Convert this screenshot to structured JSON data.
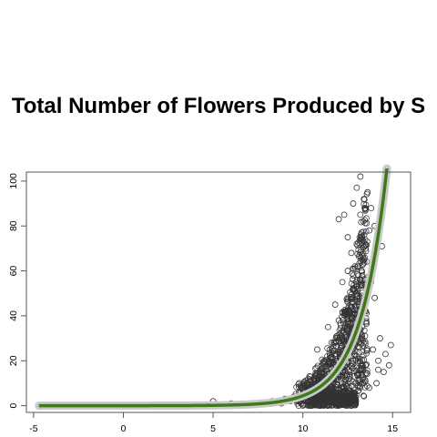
{
  "chart_data": {
    "type": "scatter",
    "title": "Total Number of Flowers Produced by S",
    "xlabel": "",
    "ylabel": "",
    "xlim": [
      -5.4,
      16
    ],
    "ylim": [
      -3,
      104
    ],
    "x_ticks": [
      -5,
      0,
      5,
      10,
      15
    ],
    "y_ticks": [
      0,
      20,
      40,
      60,
      80,
      100
    ],
    "x_tick_labels": [
      "-5",
      "0",
      "5",
      "10",
      "15"
    ],
    "y_tick_labels": [
      "0",
      "20",
      "40",
      "60",
      "80",
      "100"
    ],
    "grid": false,
    "legend": "none",
    "marker": "open-circle",
    "point_color": "#333333",
    "curve": {
      "name": "",
      "color": "#3f7a1a",
      "band_color": "#c8c8c8",
      "form": "exponential",
      "x_start": -4.7,
      "x_end": 15,
      "x_at_y_1": 9.0,
      "x_at_y_40": 13.25,
      "x_at_y_100": 14.6
    },
    "points": [
      [
        5.0,
        2
      ],
      [
        6.0,
        1
      ],
      [
        7.5,
        1
      ],
      [
        8.0,
        1.5
      ],
      [
        8.3,
        2
      ],
      [
        8.8,
        1
      ],
      [
        9.0,
        3
      ],
      [
        9.3,
        2
      ],
      [
        9.5,
        4
      ],
      [
        9.7,
        1
      ],
      [
        9.8,
        3
      ],
      [
        10.0,
        5
      ],
      [
        10.2,
        2
      ],
      [
        10.3,
        8
      ],
      [
        10.5,
        4
      ],
      [
        10.6,
        12
      ],
      [
        10.7,
        1
      ],
      [
        10.8,
        25
      ],
      [
        10.9,
        6
      ],
      [
        11.0,
        15
      ],
      [
        11.1,
        3
      ],
      [
        11.2,
        20
      ],
      [
        11.3,
        9
      ],
      [
        11.4,
        35
      ],
      [
        11.5,
        2
      ],
      [
        11.6,
        28
      ],
      [
        11.7,
        12
      ],
      [
        11.8,
        45
      ],
      [
        11.9,
        5
      ],
      [
        12.0,
        38
      ],
      [
        12.0,
        83
      ],
      [
        12.1,
        20
      ],
      [
        12.2,
        55
      ],
      [
        12.3,
        8
      ],
      [
        12.3,
        85
      ],
      [
        12.4,
        42
      ],
      [
        12.5,
        60
      ],
      [
        12.5,
        75
      ],
      [
        12.6,
        15
      ],
      [
        12.7,
        68
      ],
      [
        12.7,
        30
      ],
      [
        12.8,
        90
      ],
      [
        12.8,
        52
      ],
      [
        12.9,
        62
      ],
      [
        13.0,
        97
      ],
      [
        13.0,
        22
      ],
      [
        13.0,
        72
      ],
      [
        13.1,
        45
      ],
      [
        13.2,
        85
      ],
      [
        13.2,
        102
      ],
      [
        13.3,
        35
      ],
      [
        13.3,
        58
      ],
      [
        13.4,
        92
      ],
      [
        13.5,
        18
      ],
      [
        13.5,
        70
      ],
      [
        13.6,
        95
      ],
      [
        13.7,
        8
      ],
      [
        13.7,
        78
      ],
      [
        13.8,
        55
      ],
      [
        13.8,
        88
      ],
      [
        13.9,
        25
      ],
      [
        14.0,
        48
      ],
      [
        14.0,
        80
      ],
      [
        14.1,
        10
      ],
      [
        14.2,
        20
      ],
      [
        14.3,
        30
      ],
      [
        14.4,
        71
      ],
      [
        14.5,
        15
      ],
      [
        14.6,
        23
      ],
      [
        14.8,
        18
      ],
      [
        14.9,
        27
      ],
      [
        14.2,
        16
      ]
    ]
  }
}
